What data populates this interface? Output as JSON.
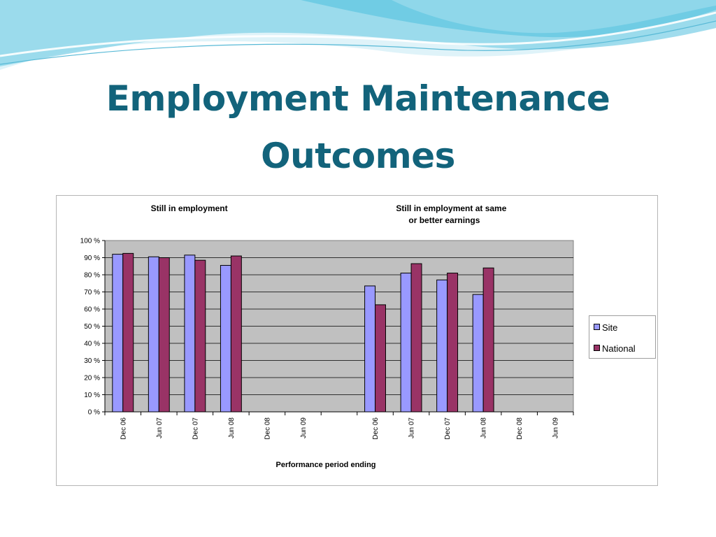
{
  "slide": {
    "title_lines": [
      "Employment Maintenance",
      "Outcomes"
    ]
  },
  "colors": {
    "title": "#12637b",
    "site": "#9999ff",
    "national": "#993366",
    "plot_bg": "#c0c0c0"
  },
  "chart_data": {
    "type": "bar",
    "groups": [
      {
        "title": "Still in employment",
        "categories": [
          "Dec 06",
          "Jun 07",
          "Dec 07",
          "Jun 08",
          "Dec 08",
          "Jun 09"
        ],
        "series": [
          {
            "name": "Site",
            "values": [
              92,
              90.5,
              91.5,
              85.5,
              null,
              null
            ]
          },
          {
            "name": "National",
            "values": [
              92.5,
              90,
              88.5,
              91,
              null,
              null
            ]
          }
        ]
      },
      {
        "title": "Still in employment at same or better earnings",
        "categories": [
          "Dec 06",
          "Jun 07",
          "Dec 07",
          "Jun 08",
          "Dec 08",
          "Jun 09"
        ],
        "series": [
          {
            "name": "Site",
            "values": [
              73.5,
              81,
              77,
              68.5,
              null,
              null
            ]
          },
          {
            "name": "National",
            "values": [
              62.5,
              86.5,
              81,
              84,
              null,
              null
            ]
          }
        ]
      }
    ],
    "xlabel": "Performance period ending",
    "ylabel": "",
    "yticks": [
      "0 %",
      "10 %",
      "20 %",
      "30 %",
      "40 %",
      "50 %",
      "60 %",
      "70 %",
      "80 %",
      "90 %",
      "100 %"
    ],
    "ylim": [
      0,
      100
    ],
    "grid": true,
    "legend": {
      "position": "right",
      "entries": [
        "Site",
        "National"
      ]
    }
  }
}
